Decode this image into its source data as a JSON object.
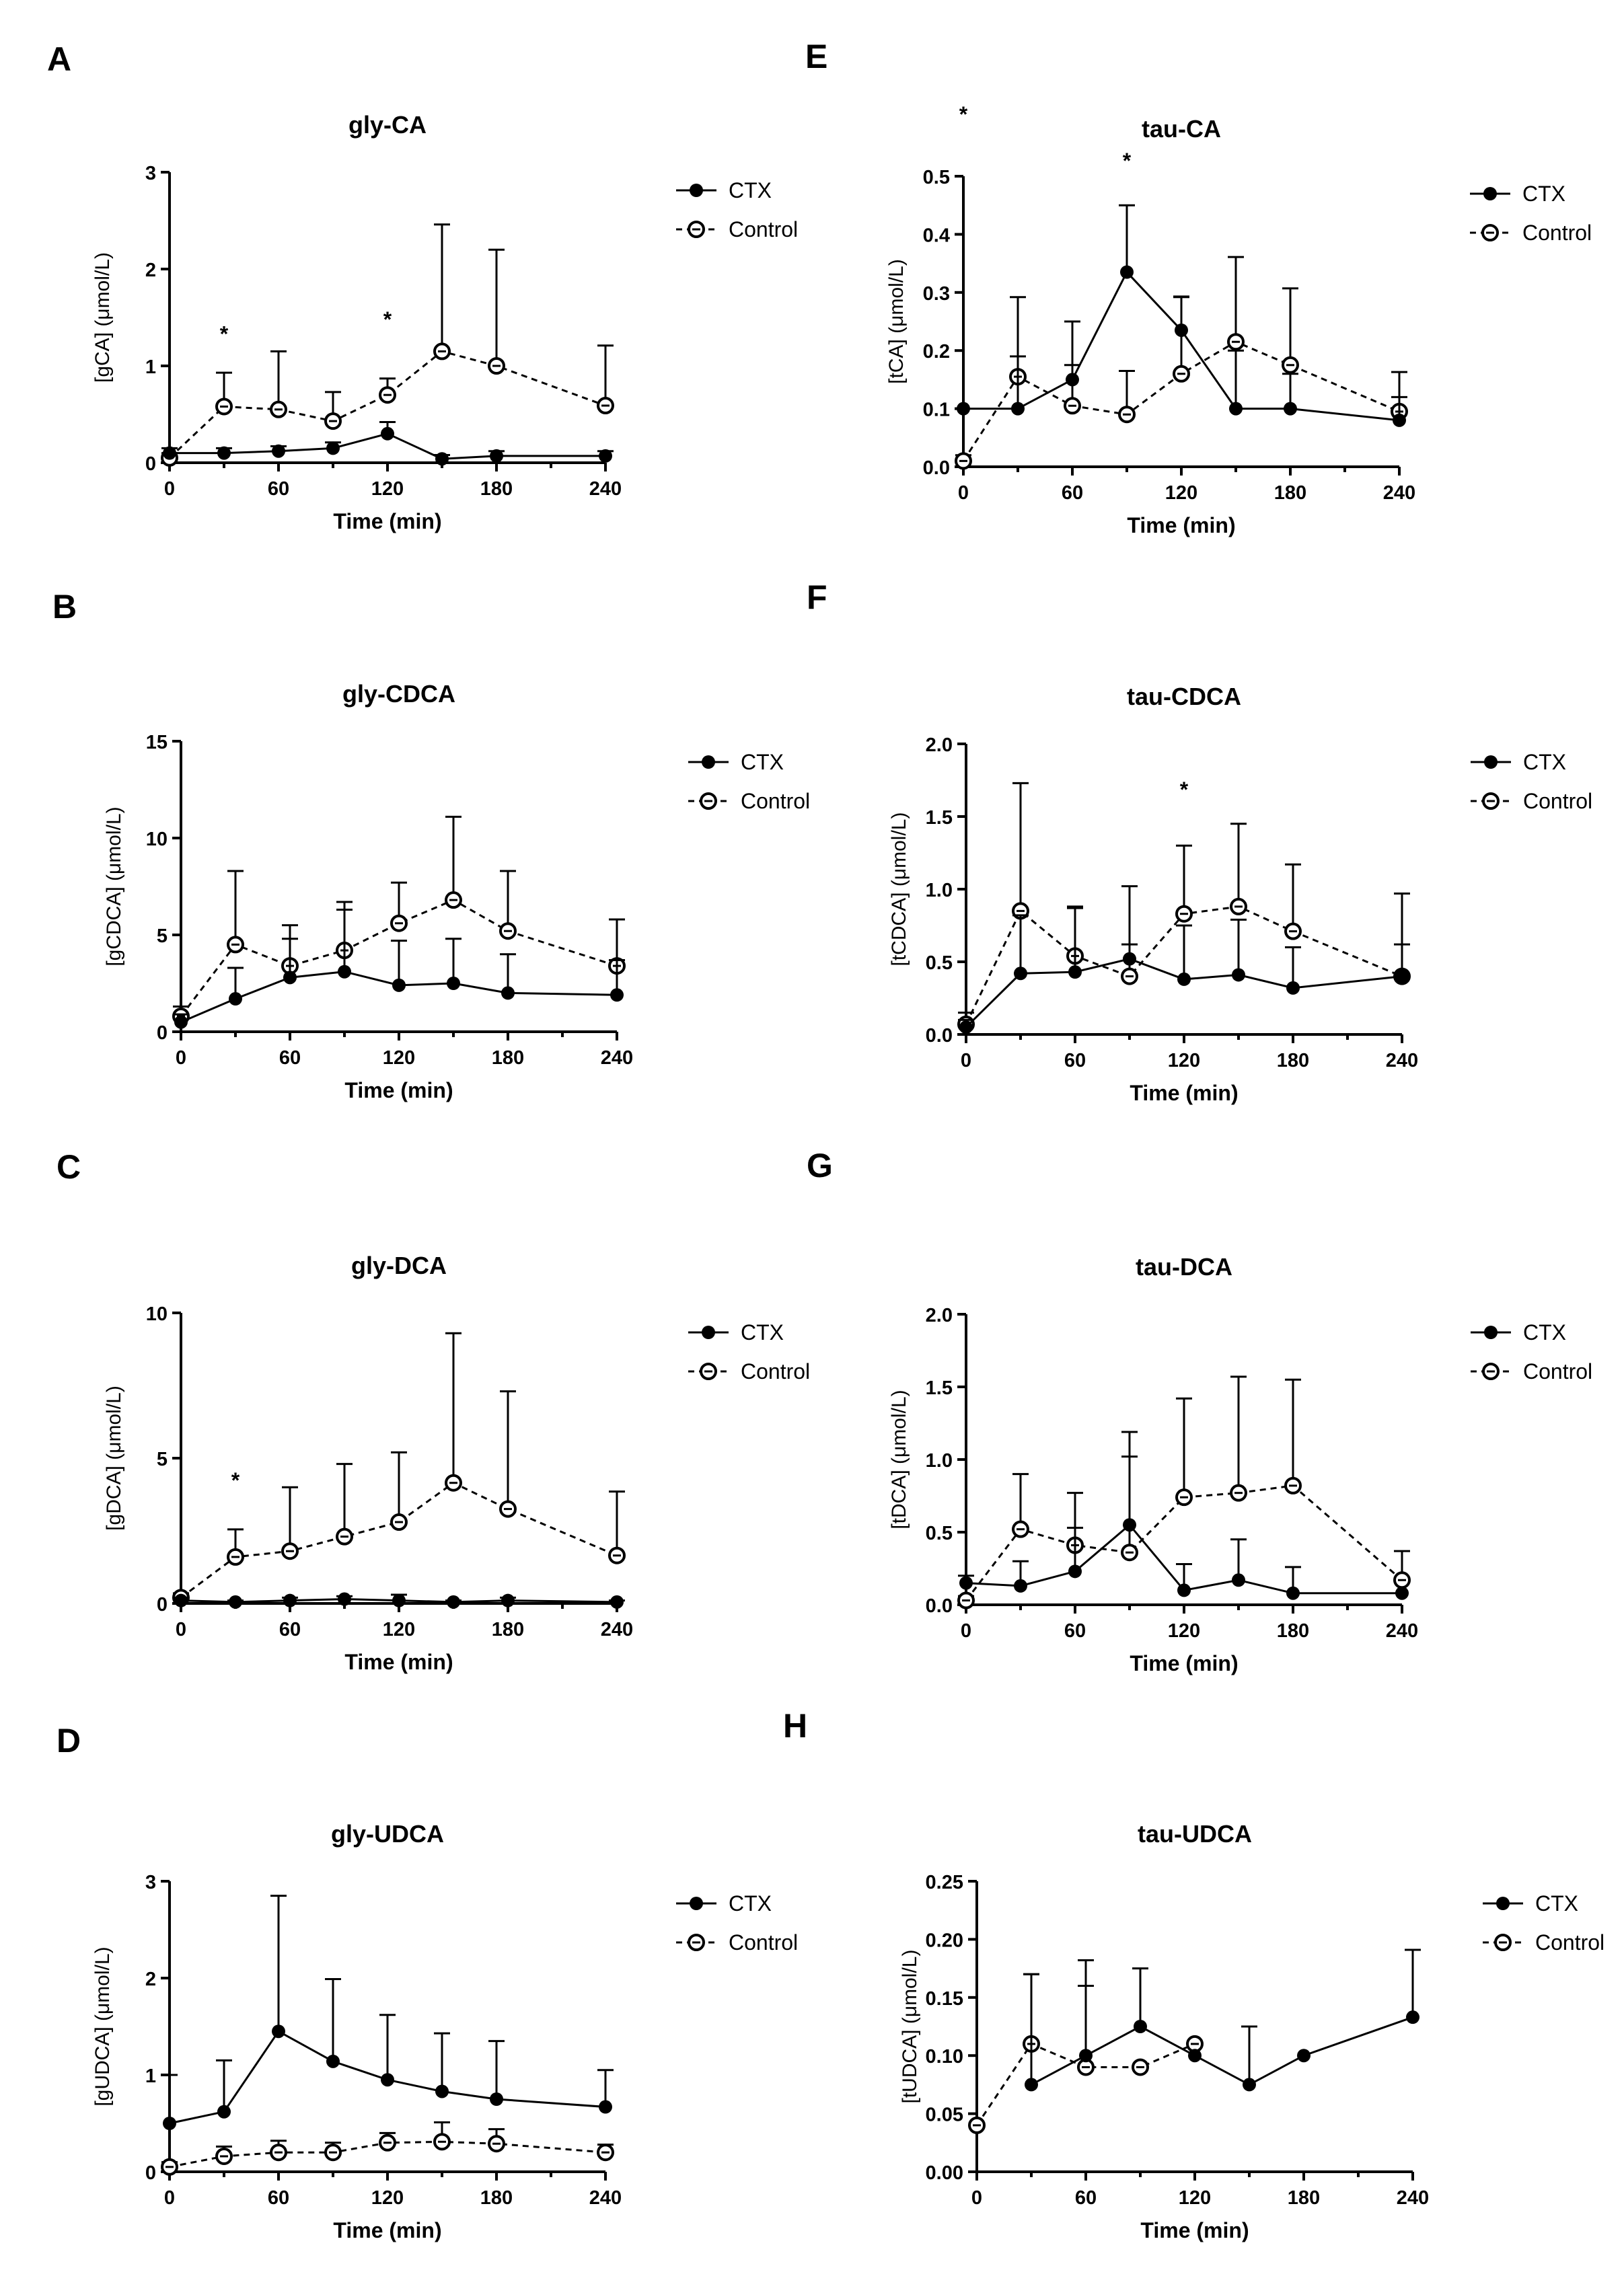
{
  "figure": {
    "series_names": [
      "CTX",
      "Control"
    ],
    "x_label": "Time (min)",
    "x_ticks": [
      0,
      60,
      120,
      180,
      240
    ]
  },
  "chart_data": [
    {
      "panel": "A",
      "type": "line",
      "title": "gly-CA",
      "ylabel": "[gCA] (μmol/L)",
      "xlim": [
        0,
        240
      ],
      "ylim": [
        0,
        3
      ],
      "yticks": [
        0,
        1,
        2,
        3
      ],
      "ytick_labels": [
        "0",
        "1",
        "2",
        "3"
      ],
      "series": [
        {
          "name": "CTX",
          "x": [
            0,
            30,
            60,
            90,
            120,
            150,
            180,
            240
          ],
          "y": [
            0.1,
            0.1,
            0.12,
            0.15,
            0.3,
            0.04,
            0.07,
            0.07
          ],
          "err": [
            0.05,
            0.05,
            0.05,
            0.06,
            0.12,
            0.04,
            0.05,
            0.05
          ]
        },
        {
          "name": "Control",
          "x": [
            0,
            30,
            60,
            90,
            120,
            150,
            180,
            240
          ],
          "y": [
            0.05,
            0.58,
            0.55,
            0.43,
            0.7,
            1.15,
            1.0,
            0.59
          ],
          "err": [
            0.05,
            0.35,
            0.6,
            0.3,
            0.17,
            1.31,
            1.2,
            0.62
          ]
        }
      ],
      "annotations": [
        {
          "text": "*",
          "x": 30,
          "y": 1.35
        },
        {
          "text": "*",
          "x": 120,
          "y": 1.5
        }
      ]
    },
    {
      "panel": "E",
      "type": "line",
      "title": "tau-CA",
      "ylabel": "[tCA] (μmol/L)",
      "xlim": [
        0,
        240
      ],
      "ylim": [
        0,
        0.5
      ],
      "yticks": [
        0,
        0.1,
        0.2,
        0.3,
        0.4,
        0.5
      ],
      "ytick_labels": [
        "0.0",
        "0.1",
        "0.2",
        "0.3",
        "0.4",
        "0.5"
      ],
      "series": [
        {
          "name": "CTX",
          "x": [
            0,
            30,
            60,
            90,
            120,
            150,
            180,
            240
          ],
          "y": [
            0.1,
            0.1,
            0.15,
            0.335,
            0.235,
            0.1,
            0.1,
            0.08
          ],
          "err": [
            0.0,
            0.09,
            0.1,
            0.115,
            0.057,
            0.1,
            0.06,
            0.04
          ]
        },
        {
          "name": "Control",
          "x": [
            0,
            30,
            60,
            90,
            120,
            150,
            180,
            240
          ],
          "y": [
            0.01,
            0.155,
            0.105,
            0.09,
            0.16,
            0.215,
            0.175,
            0.095
          ],
          "err": [
            0.01,
            0.137,
            0.07,
            0.075,
            0.133,
            0.146,
            0.132,
            0.068
          ]
        }
      ],
      "annotations": [
        {
          "text": "*",
          "x": 0,
          "y": 0.61
        },
        {
          "text": "*",
          "x": 90,
          "y": 0.53
        }
      ]
    },
    {
      "panel": "B",
      "type": "line",
      "title": "gly-CDCA",
      "ylabel": "[gCDCA] (μmol/L)",
      "xlim": [
        0,
        240
      ],
      "ylim": [
        0,
        15
      ],
      "yticks": [
        0,
        5,
        10,
        15
      ],
      "ytick_labels": [
        "0",
        "5",
        "10",
        "15"
      ],
      "series": [
        {
          "name": "CTX",
          "x": [
            0,
            30,
            60,
            90,
            120,
            150,
            180,
            240
          ],
          "y": [
            0.5,
            1.7,
            2.8,
            3.1,
            2.4,
            2.5,
            2.0,
            1.9
          ],
          "err": [
            0.4,
            1.6,
            2.0,
            3.2,
            2.3,
            2.3,
            2.0,
            1.8
          ]
        },
        {
          "name": "Control",
          "x": [
            0,
            30,
            60,
            90,
            120,
            150,
            180,
            240
          ],
          "y": [
            0.8,
            4.5,
            3.4,
            4.2,
            5.6,
            6.8,
            5.2,
            3.4
          ],
          "err": [
            0.5,
            3.8,
            2.1,
            2.5,
            2.1,
            4.3,
            3.1,
            2.4
          ]
        }
      ]
    },
    {
      "panel": "F",
      "type": "line",
      "title": "tau-CDCA",
      "ylabel": "[tCDCA] (μmol/L)",
      "xlim": [
        0,
        240
      ],
      "ylim": [
        0,
        2
      ],
      "yticks": [
        0,
        0.5,
        1,
        1.5,
        2
      ],
      "ytick_labels": [
        "0.0",
        "0.5",
        "1.0",
        "1.5",
        "2.0"
      ],
      "series": [
        {
          "name": "CTX",
          "x": [
            0,
            30,
            60,
            90,
            120,
            150,
            180,
            240
          ],
          "y": [
            0.05,
            0.42,
            0.43,
            0.52,
            0.38,
            0.41,
            0.32,
            0.4
          ],
          "err": [
            0.05,
            0.4,
            0.45,
            0.5,
            0.37,
            0.38,
            0.28,
            0.57
          ]
        },
        {
          "name": "Control",
          "x": [
            0,
            30,
            60,
            90,
            120,
            150,
            180,
            240
          ],
          "y": [
            0.07,
            0.85,
            0.54,
            0.4,
            0.83,
            0.88,
            0.71,
            0.4
          ],
          "err": [
            0.08,
            0.88,
            0.33,
            0.22,
            0.47,
            0.57,
            0.46,
            0.22
          ]
        }
      ],
      "annotations": [
        {
          "text": "*",
          "x": 120,
          "y": 1.7
        }
      ]
    },
    {
      "panel": "C",
      "type": "line",
      "title": "gly-DCA",
      "ylabel": "[gDCA] (μmol/L)",
      "xlim": [
        0,
        240
      ],
      "ylim": [
        0,
        10
      ],
      "yticks": [
        0,
        5,
        10
      ],
      "ytick_labels": [
        "0",
        "5",
        "10"
      ],
      "series": [
        {
          "name": "CTX",
          "x": [
            0,
            30,
            60,
            90,
            120,
            150,
            180,
            240
          ],
          "y": [
            0.1,
            0.05,
            0.1,
            0.15,
            0.1,
            0.05,
            0.1,
            0.05
          ],
          "err": [
            0.1,
            0.05,
            0.1,
            0.1,
            0.2,
            0.05,
            0.1,
            0.05
          ]
        },
        {
          "name": "Control",
          "x": [
            0,
            30,
            60,
            90,
            120,
            150,
            180,
            240
          ],
          "y": [
            0.2,
            1.6,
            1.8,
            2.3,
            2.8,
            4.15,
            3.25,
            1.65
          ],
          "err": [
            0.15,
            0.95,
            2.2,
            2.5,
            2.4,
            5.15,
            4.05,
            2.2
          ]
        }
      ],
      "annotations": [
        {
          "text": "*",
          "x": 30,
          "y": 4.3
        }
      ]
    },
    {
      "panel": "G",
      "type": "line",
      "title": "tau-DCA",
      "ylabel": "[tDCA] (μmol/L)",
      "xlim": [
        0,
        240
      ],
      "ylim": [
        0,
        2
      ],
      "yticks": [
        0,
        0.5,
        1,
        1.5,
        2
      ],
      "ytick_labels": [
        "0.0",
        "0.5",
        "1.0",
        "1.5",
        "2.0"
      ],
      "series": [
        {
          "name": "CTX",
          "x": [
            0,
            30,
            60,
            90,
            120,
            150,
            180,
            240
          ],
          "y": [
            0.15,
            0.13,
            0.23,
            0.55,
            0.1,
            0.17,
            0.08,
            0.08
          ],
          "err": [
            0.05,
            0.17,
            0.3,
            0.47,
            0.18,
            0.28,
            0.18,
            0.0
          ]
        },
        {
          "name": "Control",
          "x": [
            0,
            30,
            60,
            90,
            120,
            150,
            180,
            240
          ],
          "y": [
            0.03,
            0.52,
            0.41,
            0.36,
            0.74,
            0.77,
            0.82,
            0.17
          ],
          "err": [
            0.03,
            0.38,
            0.36,
            0.83,
            0.68,
            0.8,
            0.73,
            0.2
          ]
        }
      ]
    },
    {
      "panel": "D",
      "type": "line",
      "title": "gly-UDCA",
      "ylabel": "[gUDCA] (μmol/L)",
      "xlim": [
        0,
        240
      ],
      "ylim": [
        0,
        3
      ],
      "yticks": [
        0,
        1,
        2,
        3
      ],
      "ytick_labels": [
        "0",
        "1",
        "2",
        "3"
      ],
      "series": [
        {
          "name": "CTX",
          "x": [
            0,
            30,
            60,
            90,
            120,
            150,
            180,
            240
          ],
          "y": [
            0.5,
            0.62,
            1.45,
            1.14,
            0.95,
            0.83,
            0.75,
            0.67
          ],
          "err": [
            0.5,
            0.53,
            1.4,
            0.85,
            0.67,
            0.6,
            0.6,
            0.38
          ]
        },
        {
          "name": "Control",
          "x": [
            0,
            30,
            60,
            90,
            120,
            150,
            180,
            240
          ],
          "y": [
            0.05,
            0.16,
            0.2,
            0.2,
            0.3,
            0.31,
            0.29,
            0.2
          ],
          "err": [
            0.05,
            0.1,
            0.12,
            0.1,
            0.1,
            0.2,
            0.15,
            0.08
          ]
        }
      ]
    },
    {
      "panel": "H",
      "type": "line",
      "title": "tau-UDCA",
      "ylabel": "[tUDCA] (μmol/L)",
      "xlim": [
        0,
        240
      ],
      "ylim": [
        0,
        0.25
      ],
      "yticks": [
        0,
        0.05,
        0.1,
        0.15,
        0.2,
        0.25
      ],
      "ytick_labels": [
        "0.00",
        "0.05",
        "0.10",
        "0.15",
        "0.20",
        "0.25"
      ],
      "series": [
        {
          "name": "CTX",
          "x": [
            30,
            60,
            90,
            120,
            150,
            180,
            240
          ],
          "y": [
            0.075,
            0.1,
            0.125,
            0.1,
            0.075,
            0.1,
            0.133
          ],
          "err": [
            0.095,
            0.082,
            0.05,
            0.0,
            0.05,
            0.0,
            0.058
          ]
        },
        {
          "name": "Control",
          "x": [
            0,
            30,
            60,
            90,
            120
          ],
          "y": [
            0.04,
            0.11,
            0.09,
            0.09,
            0.11
          ],
          "err": [
            0.0,
            0.06,
            0.07,
            0.0,
            0.0
          ]
        }
      ]
    }
  ]
}
